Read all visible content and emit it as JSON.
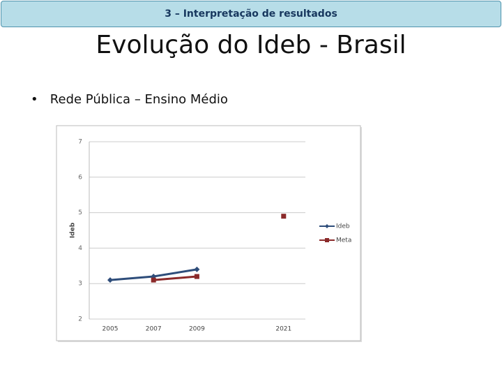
{
  "header": {
    "title": "3 – Interpretação de resultados"
  },
  "slide": {
    "title": "Evolução do Ideb - Brasil",
    "bullet": "Rede Pública – Ensino Médio"
  },
  "chart_data": {
    "type": "line",
    "y_label": "Ideb",
    "categories": [
      "2005",
      "2007",
      "2009",
      null,
      "2021"
    ],
    "series": [
      {
        "name": "Ideb",
        "color": "#2e4d7a",
        "values": [
          3.1,
          3.2,
          3.4,
          null,
          null
        ]
      },
      {
        "name": "Meta",
        "color": "#8b2a2a",
        "values": [
          null,
          3.1,
          3.2,
          null,
          4.9
        ]
      }
    ],
    "ylim": [
      2,
      7
    ],
    "yticks": [
      2,
      3,
      4,
      5,
      6,
      7
    ],
    "grid": true,
    "legend": "right"
  }
}
